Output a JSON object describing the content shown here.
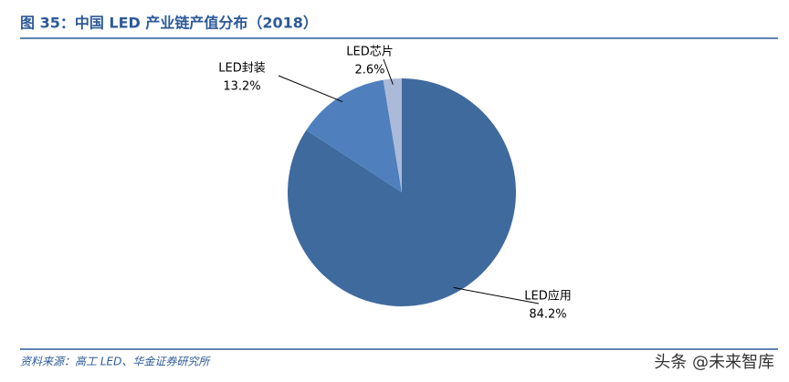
{
  "chart_data": {
    "type": "pie",
    "title": "图 35：中国 LED 产业链产值分布（2018）",
    "categories": [
      "LED应用",
      "LED封装",
      "LED芯片"
    ],
    "values": [
      84.2,
      13.2,
      2.6
    ],
    "value_labels": [
      "84.2%",
      "13.2%",
      "2.6%"
    ],
    "colors": [
      "#3f6a9e",
      "#4f80bd",
      "#aabad8"
    ]
  },
  "source": "资料来源：高工 LED、华金证券研究所",
  "watermark": "头条 @未来智库"
}
